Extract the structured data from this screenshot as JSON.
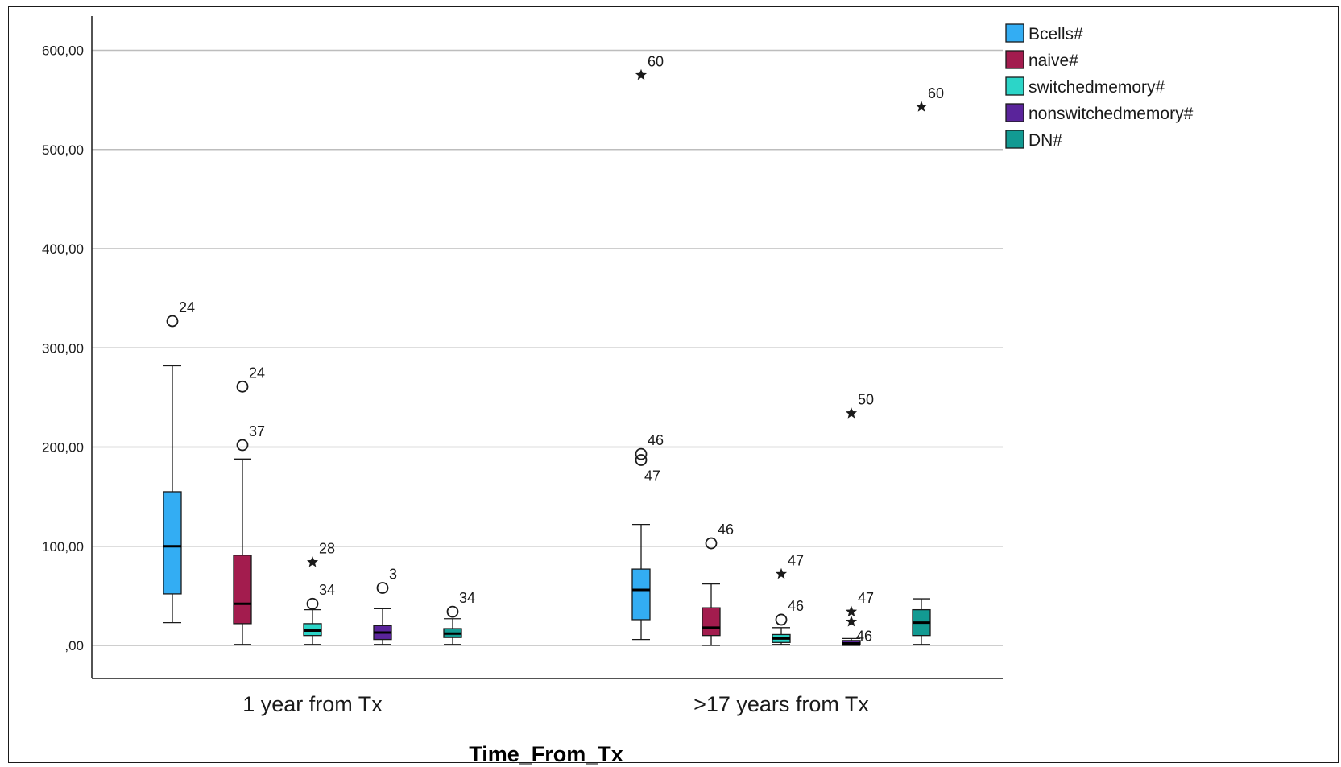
{
  "chart_data": {
    "type": "boxplot",
    "title": "",
    "xlabel": "Time_From_Tx",
    "ylabel": "",
    "ylim": [
      -33,
      635
    ],
    "yticks": [
      0,
      100,
      200,
      300,
      400,
      500,
      600
    ],
    "ytick_labels": [
      ",00",
      "100,00",
      "200,00",
      "300,00",
      "400,00",
      "500,00",
      "600,00"
    ],
    "grid": true,
    "legend_position": "top-right",
    "categories": [
      "1 year from Tx",
      ">17 years from Tx"
    ],
    "series": [
      {
        "name": "Bcells#",
        "color": "#33adf3",
        "boxes": [
          {
            "min": 23,
            "q1": 52,
            "median": 100,
            "q3": 155,
            "max": 282,
            "outliers": [
              {
                "value": 327,
                "label": "24",
                "marker": "circle"
              }
            ]
          },
          {
            "min": 6,
            "q1": 26,
            "median": 56,
            "q3": 77,
            "max": 122,
            "outliers": [
              {
                "value": 193,
                "label": "46",
                "marker": "circle"
              },
              {
                "value": 187,
                "label": "47",
                "marker": "circle",
                "label_below": true
              },
              {
                "value": 575,
                "label": "60",
                "marker": "star"
              }
            ]
          }
        ]
      },
      {
        "name": "naive#",
        "color": "#a31c4e",
        "boxes": [
          {
            "min": 1,
            "q1": 22,
            "median": 42,
            "q3": 91,
            "max": 188,
            "outliers": [
              {
                "value": 261,
                "label": "24",
                "marker": "circle"
              },
              {
                "value": 202,
                "label": "37",
                "marker": "circle"
              }
            ]
          },
          {
            "min": 0,
            "q1": 10,
            "median": 18,
            "q3": 38,
            "max": 62,
            "outliers": [
              {
                "value": 103,
                "label": "46",
                "marker": "circle"
              }
            ]
          }
        ]
      },
      {
        "name": "switchedmemory#",
        "color": "#2cd5c8",
        "boxes": [
          {
            "min": 1,
            "q1": 10,
            "median": 15,
            "q3": 22,
            "max": 36,
            "outliers": [
              {
                "value": 42,
                "label": "34",
                "marker": "circle"
              },
              {
                "value": 84,
                "label": "28",
                "marker": "star"
              }
            ]
          },
          {
            "min": 1,
            "q1": 3,
            "median": 7,
            "q3": 11,
            "max": 18,
            "outliers": [
              {
                "value": 26,
                "label": "46",
                "marker": "circle"
              },
              {
                "value": 72,
                "label": "47",
                "marker": "star"
              }
            ]
          }
        ]
      },
      {
        "name": "nonswitchedmemory#",
        "color": "#5a249b",
        "boxes": [
          {
            "min": 1,
            "q1": 6,
            "median": 13,
            "q3": 20,
            "max": 37,
            "outliers": [
              {
                "value": 58,
                "label": "3",
                "marker": "circle"
              }
            ]
          },
          {
            "min": 0,
            "q1": 1,
            "median": 2,
            "q3": 5,
            "max": 7,
            "outliers": [
              {
                "value": 24,
                "label": "46",
                "marker": "star",
                "label_side": true
              },
              {
                "value": 34,
                "label": "47",
                "marker": "star"
              },
              {
                "value": 234,
                "label": "50",
                "marker": "star"
              }
            ]
          }
        ]
      },
      {
        "name": "DN#",
        "color": "#129a92",
        "boxes": [
          {
            "min": 1,
            "q1": 8,
            "median": 12,
            "q3": 17,
            "max": 27,
            "outliers": [
              {
                "value": 34,
                "label": "34",
                "marker": "circle"
              }
            ]
          },
          {
            "min": 1,
            "q1": 10,
            "median": 23,
            "q3": 36,
            "max": 47,
            "outliers": [
              {
                "value": 543,
                "label": "60",
                "marker": "star"
              }
            ]
          }
        ]
      }
    ]
  }
}
